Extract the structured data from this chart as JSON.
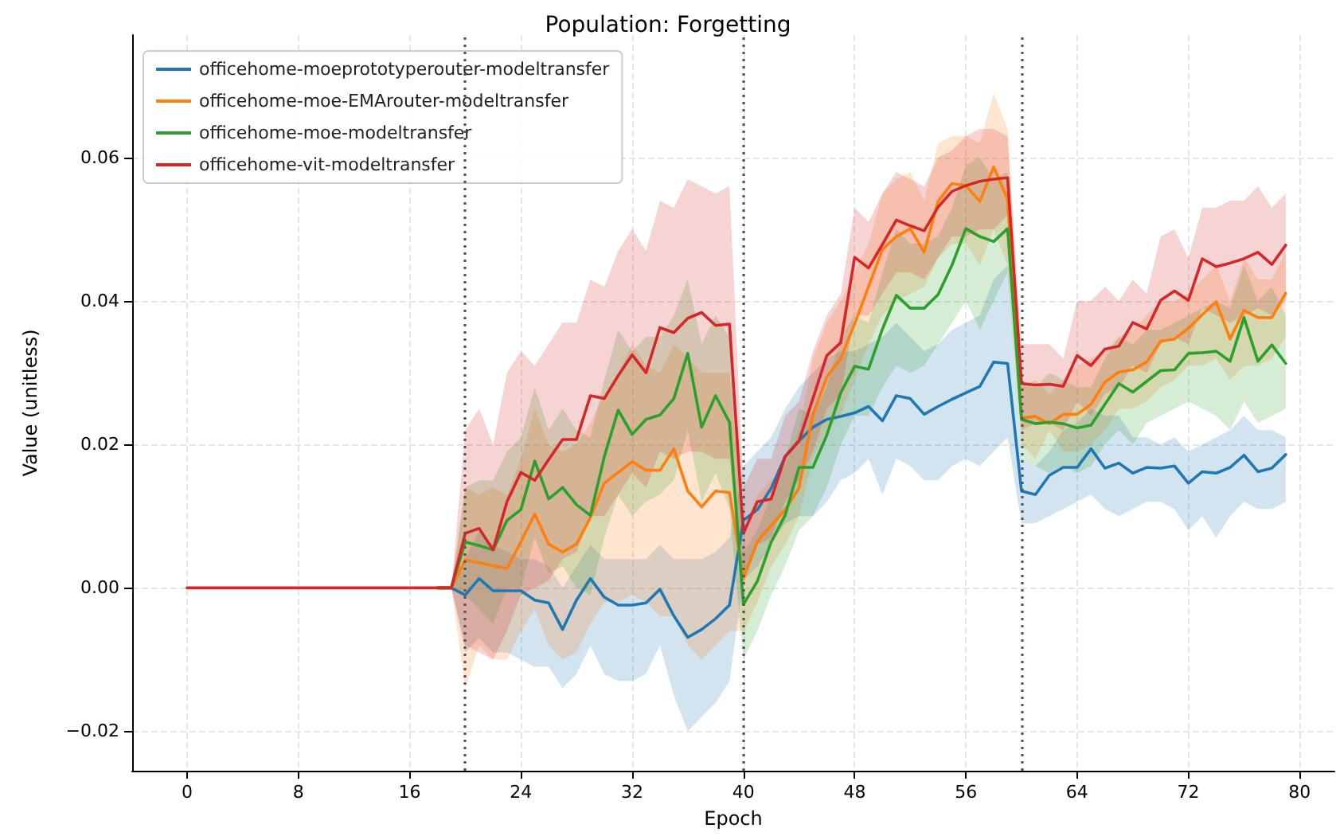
{
  "chart_data": {
    "type": "line",
    "title": "Population: Forgetting",
    "xlabel": "Epoch",
    "ylabel": "Value (unitless)",
    "x": [
      0,
      1,
      2,
      3,
      4,
      5,
      6,
      7,
      8,
      9,
      10,
      11,
      12,
      13,
      14,
      15,
      16,
      17,
      18,
      19,
      20,
      21,
      22,
      23,
      24,
      25,
      26,
      27,
      28,
      29,
      30,
      31,
      32,
      33,
      34,
      35,
      36,
      37,
      38,
      39,
      40,
      41,
      42,
      43,
      44,
      45,
      46,
      47,
      48,
      49,
      50,
      51,
      52,
      53,
      54,
      55,
      56,
      57,
      58,
      59,
      60,
      61,
      62,
      63,
      64,
      65,
      66,
      67,
      68,
      69,
      70,
      71,
      72,
      73,
      74,
      75,
      76,
      77,
      78,
      79
    ],
    "xlim": [
      -3.95,
      82.5
    ],
    "xticks": [
      0,
      8,
      16,
      24,
      32,
      40,
      48,
      56,
      64,
      72,
      80
    ],
    "ylim": [
      -0.0255,
      0.0771
    ],
    "yticks": [
      {
        "value": -0.02,
        "label": "−0.02"
      },
      {
        "value": 0,
        "label": "0.00"
      },
      {
        "value": 0.02,
        "label": "0.02"
      },
      {
        "value": 0.04,
        "label": "0.04"
      },
      {
        "value": 0.06,
        "label": "0.06"
      }
    ],
    "grid": true,
    "legend": "top left",
    "marker": "none",
    "line_style": "solid",
    "ref_lines": [
      {
        "axis": "x",
        "value": 20,
        "color": "#555555",
        "line_style": "dotted"
      },
      {
        "axis": "x",
        "value": 40,
        "color": "#555555",
        "line_style": "dotted"
      },
      {
        "axis": "x",
        "value": 60,
        "color": "#555555",
        "line_style": "dotted"
      }
    ],
    "series": [
      {
        "name": "officehome-moeprototyperouter-modeltransfer",
        "color": "#1f77b4",
        "values": [
          null,
          null,
          null,
          null,
          null,
          null,
          null,
          null,
          null,
          null,
          null,
          null,
          null,
          null,
          null,
          null,
          null,
          null,
          0,
          0,
          -0.001,
          0.0013,
          -0.0004,
          -0.0004,
          -0.0004,
          -0.0017,
          -0.0021,
          -0.0058,
          -0.0017,
          0.0013,
          -0.0013,
          -0.0024,
          -0.0024,
          -0.0021,
          -0.0002,
          -0.0039,
          -0.0069,
          -0.0058,
          -0.0043,
          -0.0024,
          0.0094,
          0.0109,
          0.0139,
          0.0183,
          0.0205,
          0.0224,
          0.0235,
          0.0239,
          0.0244,
          0.0253,
          0.0233,
          0.0268,
          0.0264,
          0.0242,
          0.0253,
          0.0263,
          0.0272,
          0.0281,
          0.0315,
          0.0313,
          0.0135,
          0.013,
          0.0157,
          0.0168,
          0.0168,
          0.0194,
          0.0167,
          0.0174,
          0.016,
          0.0168,
          0.0167,
          0.017,
          0.0146,
          0.0162,
          0.016,
          0.0168,
          0.0185,
          0.0162,
          0.0167,
          0.0186
        ],
        "lower": [
          0,
          0,
          0,
          0,
          0,
          0,
          0,
          0,
          0,
          0,
          0,
          0,
          0,
          0,
          0,
          0,
          0,
          0,
          0,
          0,
          -0.009,
          -0.007,
          -0.009,
          -0.009,
          -0.01,
          -0.011,
          -0.011,
          -0.014,
          -0.012,
          -0.008,
          -0.012,
          -0.013,
          -0.013,
          -0.012,
          -0.008,
          -0.015,
          -0.02,
          -0.018,
          -0.016,
          -0.013,
          0.001,
          0.003,
          0.006,
          0.009,
          0.01,
          0.01,
          0.012,
          0.015,
          0.016,
          0.018,
          0.013,
          0.018,
          0.017,
          0.015,
          0.015,
          0.017,
          0.018,
          0.017,
          0.019,
          0.021,
          0.009,
          0.009,
          0.01,
          0.011,
          0.012,
          0.013,
          0.011,
          0.01,
          0.011,
          0.012,
          0.012,
          0.011,
          0.008,
          0.01,
          0.007,
          0.01,
          0.012,
          0.011,
          0.011,
          0.012
        ],
        "upper": [
          0,
          0,
          0,
          0,
          0,
          0,
          0,
          0,
          0,
          0,
          0,
          0,
          0,
          0,
          0,
          0,
          0,
          0,
          0,
          0,
          0.004,
          0.008,
          0.006,
          0.005,
          0.004,
          0.004,
          0.003,
          0.0,
          0.003,
          0.006,
          0.004,
          0.004,
          0.004,
          0.004,
          0.006,
          0.004,
          0.004,
          0.004,
          0.005,
          0.007,
          0.017,
          0.019,
          0.021,
          0.025,
          0.028,
          0.03,
          0.032,
          0.033,
          0.033,
          0.034,
          0.035,
          0.037,
          0.035,
          0.033,
          0.034,
          0.036,
          0.037,
          0.038,
          0.043,
          0.045,
          0.018,
          0.017,
          0.019,
          0.022,
          0.023,
          0.025,
          0.024,
          0.024,
          0.021,
          0.021,
          0.02,
          0.021,
          0.019,
          0.02,
          0.021,
          0.022,
          0.024,
          0.022,
          0.022,
          0.021
        ]
      },
      {
        "name": "officehome-moe-EMArouter-modeltransfer",
        "color": "#ff7f0e",
        "values": [
          null,
          null,
          null,
          null,
          null,
          null,
          null,
          null,
          null,
          null,
          null,
          null,
          null,
          null,
          null,
          null,
          null,
          null,
          0,
          0,
          0.0039,
          0.0035,
          0.0031,
          0.0027,
          0.0064,
          0.0103,
          0.0061,
          0.005,
          0.0061,
          0.0098,
          0.0146,
          0.0161,
          0.0176,
          0.0164,
          0.0164,
          0.0194,
          0.0135,
          0.0113,
          0.0135,
          0.0133,
          0.0013,
          0.0064,
          0.0087,
          0.0109,
          0.0139,
          0.0242,
          0.0294,
          0.032,
          0.0368,
          0.042,
          0.0472,
          0.049,
          0.0501,
          0.0468,
          0.0539,
          0.0564,
          0.0561,
          0.0539,
          0.0587,
          0.0542,
          0.0237,
          0.0239,
          0.0229,
          0.0242,
          0.0242,
          0.0256,
          0.0287,
          0.0301,
          0.0304,
          0.0315,
          0.0344,
          0.0347,
          0.0362,
          0.0381,
          0.0399,
          0.0347,
          0.0387,
          0.0377,
          0.0377,
          0.0411
        ],
        "lower": [
          0,
          0,
          0,
          0,
          0,
          0,
          0,
          0,
          0,
          0,
          0,
          0,
          0,
          0,
          0,
          0,
          0,
          0,
          0,
          0,
          -0.014,
          -0.008,
          -0.01,
          -0.01,
          -0.006,
          -0.003,
          -0.008,
          -0.01,
          -0.009,
          -0.005,
          -0.002,
          -0.002,
          -0.001,
          -0.002,
          -0.004,
          -0.004,
          -0.008,
          -0.01,
          -0.008,
          -0.006,
          -0.006,
          -0.002,
          0.003,
          0.006,
          0.01,
          0.018,
          0.022,
          0.024,
          0.029,
          0.034,
          0.038,
          0.04,
          0.041,
          0.042,
          0.046,
          0.048,
          0.048,
          0.045,
          0.05,
          0.045,
          0.02,
          0.018,
          0.022,
          0.019,
          0.019,
          0.02,
          0.022,
          0.025,
          0.025,
          0.026,
          0.028,
          0.029,
          0.031,
          0.031,
          0.032,
          0.029,
          0.031,
          0.031,
          0.032,
          0.035
        ],
        "upper": [
          0,
          0,
          0,
          0,
          0,
          0,
          0,
          0,
          0,
          0,
          0,
          0,
          0,
          0,
          0,
          0,
          0,
          0,
          0,
          0,
          0.014,
          0.013,
          0.014,
          0.013,
          0.018,
          0.025,
          0.02,
          0.019,
          0.02,
          0.023,
          0.027,
          0.03,
          0.034,
          0.031,
          0.03,
          0.034,
          0.032,
          0.03,
          0.03,
          0.03,
          0.008,
          0.013,
          0.015,
          0.017,
          0.022,
          0.032,
          0.037,
          0.04,
          0.044,
          0.048,
          0.055,
          0.057,
          0.058,
          0.054,
          0.062,
          0.063,
          0.063,
          0.062,
          0.069,
          0.064,
          0.028,
          0.029,
          0.027,
          0.029,
          0.031,
          0.032,
          0.033,
          0.035,
          0.036,
          0.038,
          0.04,
          0.04,
          0.041,
          0.043,
          0.045,
          0.04,
          0.046,
          0.043,
          0.043,
          0.047
        ]
      },
      {
        "name": "officehome-moe-modeltransfer",
        "color": "#2ca02c",
        "values": [
          null,
          null,
          null,
          null,
          null,
          null,
          null,
          null,
          null,
          null,
          null,
          null,
          null,
          null,
          null,
          null,
          null,
          null,
          0,
          0,
          0.0064,
          0.0059,
          0.0053,
          0.0094,
          0.0109,
          0.0177,
          0.0124,
          0.014,
          0.0116,
          0.0101,
          0.0183,
          0.0248,
          0.0214,
          0.0235,
          0.0241,
          0.0264,
          0.0327,
          0.0224,
          0.0268,
          0.0231,
          -0.0023,
          0.0009,
          0.0064,
          0.0101,
          0.0168,
          0.0168,
          0.0213,
          0.0272,
          0.0309,
          0.0305,
          0.0361,
          0.0408,
          0.039,
          0.039,
          0.0409,
          0.045,
          0.0501,
          0.049,
          0.0483,
          0.0501,
          0.0235,
          0.0229,
          0.0231,
          0.0229,
          0.0223,
          0.0227,
          0.0256,
          0.0285,
          0.0273,
          0.0288,
          0.0303,
          0.0304,
          0.0327,
          0.0328,
          0.033,
          0.0316,
          0.0377,
          0.0316,
          0.0339,
          0.0313
        ],
        "lower": [
          0,
          0,
          0,
          0,
          0,
          0,
          0,
          0,
          0,
          0,
          0,
          0,
          0,
          0,
          0,
          0,
          0,
          0,
          0,
          0,
          -0.001,
          -0.003,
          -0.005,
          0.0,
          0.0,
          0.007,
          0.002,
          0.003,
          0.0,
          -0.001,
          0.007,
          0.013,
          0.01,
          0.012,
          0.013,
          0.015,
          0.022,
          0.012,
          0.016,
          0.011,
          -0.01,
          -0.006,
          -0.001,
          0.003,
          0.008,
          0.01,
          0.014,
          0.02,
          0.024,
          0.024,
          0.028,
          0.031,
          0.03,
          0.031,
          0.034,
          0.037,
          0.04,
          0.036,
          0.04,
          0.044,
          0.018,
          0.017,
          0.016,
          0.017,
          0.016,
          0.017,
          0.02,
          0.022,
          0.02,
          0.023,
          0.024,
          0.025,
          0.026,
          0.025,
          0.024,
          0.022,
          0.026,
          0.023,
          0.024,
          0.025
        ],
        "upper": [
          0,
          0,
          0,
          0,
          0,
          0,
          0,
          0,
          0,
          0,
          0,
          0,
          0,
          0,
          0,
          0,
          0,
          0,
          0,
          0,
          0.014,
          0.015,
          0.015,
          0.019,
          0.021,
          0.028,
          0.022,
          0.025,
          0.022,
          0.021,
          0.029,
          0.036,
          0.033,
          0.035,
          0.035,
          0.038,
          0.043,
          0.034,
          0.038,
          0.035,
          0.005,
          0.008,
          0.013,
          0.018,
          0.025,
          0.024,
          0.028,
          0.035,
          0.038,
          0.037,
          0.044,
          0.05,
          0.048,
          0.048,
          0.049,
          0.053,
          0.059,
          0.06,
          0.057,
          0.058,
          0.029,
          0.028,
          0.03,
          0.029,
          0.028,
          0.028,
          0.032,
          0.035,
          0.034,
          0.036,
          0.036,
          0.037,
          0.038,
          0.039,
          0.04,
          0.039,
          0.045,
          0.04,
          0.042,
          0.038
        ]
      },
      {
        "name": "officehome-vit-modeltransfer",
        "color": "#d62728",
        "values": [
          0,
          0,
          0,
          0,
          0,
          0,
          0,
          0,
          0,
          0,
          0,
          0,
          0,
          0,
          0,
          0,
          0,
          0,
          0,
          0,
          0.0076,
          0.0083,
          0.0053,
          0.012,
          0.0161,
          0.015,
          0.0179,
          0.0207,
          0.0207,
          0.0268,
          0.0264,
          0.0296,
          0.0325,
          0.03,
          0.0363,
          0.0356,
          0.0376,
          0.0384,
          0.0366,
          0.0368,
          0.0076,
          0.012,
          0.0124,
          0.0183,
          0.0205,
          0.0264,
          0.0324,
          0.0342,
          0.0461,
          0.0446,
          0.0479,
          0.0513,
          0.0505,
          0.0498,
          0.0531,
          0.0553,
          0.0561,
          0.0567,
          0.057,
          0.0572,
          0.0285,
          0.0283,
          0.0284,
          0.0281,
          0.0324,
          0.031,
          0.0333,
          0.0337,
          0.037,
          0.0361,
          0.0401,
          0.0414,
          0.0401,
          0.0459,
          0.0448,
          0.0453,
          0.0459,
          0.0468,
          0.0451,
          0.0478
        ],
        "lower": [
          0,
          0,
          0,
          0,
          0,
          0,
          0,
          0,
          0,
          0,
          0,
          0,
          0,
          0,
          0,
          0,
          0,
          0,
          0,
          0,
          -0.008,
          -0.009,
          -0.01,
          -0.006,
          -0.001,
          0.0,
          0.001,
          0.004,
          0.005,
          0.01,
          0.01,
          0.013,
          0.016,
          0.014,
          0.019,
          0.018,
          0.019,
          0.019,
          0.018,
          0.018,
          0.001,
          0.006,
          0.007,
          0.012,
          0.015,
          0.019,
          0.025,
          0.027,
          0.038,
          0.038,
          0.041,
          0.044,
          0.044,
          0.043,
          0.046,
          0.049,
          0.049,
          0.05,
          0.05,
          0.052,
          0.022,
          0.023,
          0.023,
          0.022,
          0.026,
          0.024,
          0.027,
          0.028,
          0.031,
          0.03,
          0.034,
          0.035,
          0.034,
          0.039,
          0.038,
          0.037,
          0.038,
          0.039,
          0.038,
          0.04
        ],
        "upper": [
          0,
          0,
          0,
          0,
          0,
          0,
          0,
          0,
          0,
          0,
          0,
          0,
          0,
          0,
          0,
          0,
          0,
          0,
          0,
          0,
          0.022,
          0.025,
          0.02,
          0.03,
          0.033,
          0.031,
          0.034,
          0.037,
          0.037,
          0.043,
          0.042,
          0.047,
          0.05,
          0.047,
          0.054,
          0.053,
          0.057,
          0.056,
          0.055,
          0.056,
          0.014,
          0.018,
          0.018,
          0.024,
          0.026,
          0.033,
          0.038,
          0.041,
          0.053,
          0.051,
          0.055,
          0.058,
          0.057,
          0.056,
          0.06,
          0.061,
          0.063,
          0.064,
          0.064,
          0.063,
          0.034,
          0.034,
          0.034,
          0.032,
          0.04,
          0.04,
          0.042,
          0.04,
          0.043,
          0.041,
          0.049,
          0.05,
          0.046,
          0.053,
          0.053,
          0.054,
          0.054,
          0.056,
          0.053,
          0.055
        ]
      }
    ]
  }
}
